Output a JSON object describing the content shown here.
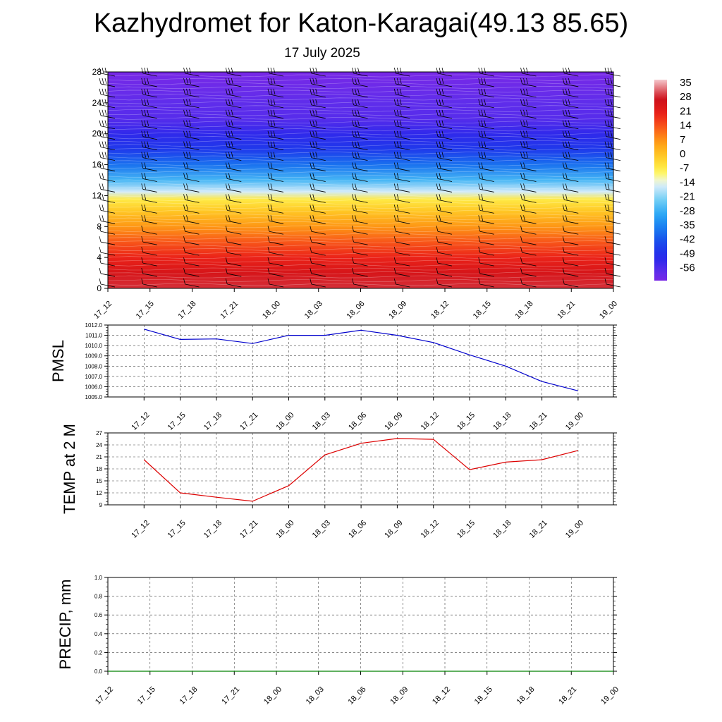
{
  "title": "Kazhydromet for Katon-Karagai(49.13 85.65)",
  "subtitle": "17 July 2025",
  "time_labels": [
    "17_12",
    "17_15",
    "17_18",
    "17_21",
    "18_00",
    "18_03",
    "18_06",
    "18_09",
    "18_12",
    "18_15",
    "18_18",
    "18_21",
    "19_00"
  ],
  "chart_data": [
    {
      "type": "heatmap",
      "name": "cross-section",
      "y_ticks": [
        "0",
        "4",
        "8",
        "12",
        "16",
        "20",
        "24",
        "28"
      ],
      "ylim": [
        0,
        28
      ],
      "colorbar_labels": [
        "35",
        "28",
        "21",
        "14",
        "7",
        "0",
        "-7",
        "-14",
        "-21",
        "-28",
        "-35",
        "-42",
        "-49",
        "-56"
      ],
      "colorbar_range": [
        -60,
        38
      ],
      "level_temps": [
        {
          "y": 0,
          "t": 30
        },
        {
          "y": 2,
          "t": 26
        },
        {
          "y": 4,
          "t": 21
        },
        {
          "y": 6,
          "t": 15
        },
        {
          "y": 8,
          "t": 8
        },
        {
          "y": 10,
          "t": 1
        },
        {
          "y": 11.5,
          "t": -5
        },
        {
          "y": 12.5,
          "t": -14
        },
        {
          "y": 14,
          "t": -25
        },
        {
          "y": 16,
          "t": -36
        },
        {
          "y": 18,
          "t": -45
        },
        {
          "y": 20,
          "t": -50
        },
        {
          "y": 22,
          "t": -55
        },
        {
          "y": 24,
          "t": -56
        },
        {
          "y": 26,
          "t": -58
        },
        {
          "y": 28,
          "t": -60
        }
      ]
    },
    {
      "type": "line",
      "name": "pmsl",
      "ylabel": "PMSL",
      "ylim": [
        1005,
        1012
      ],
      "y_ticks": [
        "1005.0",
        "1006.0",
        "1007.0",
        "1008.0",
        "1009.0",
        "1010.0",
        "1011.0",
        "1012.0"
      ],
      "x": [
        "17_12",
        "17_15",
        "17_18",
        "17_21",
        "18_00",
        "18_03",
        "18_06",
        "18_09",
        "18_12",
        "18_15",
        "18_18",
        "18_21",
        "19_00"
      ],
      "values": [
        1011.6,
        1010.6,
        1010.65,
        1010.2,
        1011.0,
        1011.0,
        1011.5,
        1011.0,
        1010.3,
        1009.1,
        1008.0,
        1006.5,
        1005.6
      ],
      "color": "#0000cc"
    },
    {
      "type": "line",
      "name": "temp",
      "ylabel": "TEMP at 2 M",
      "ylim": [
        9,
        27
      ],
      "y_ticks": [
        "9",
        "12",
        "15",
        "18",
        "21",
        "24",
        "27"
      ],
      "x": [
        "17_12",
        "17_15",
        "17_18",
        "17_21",
        "18_00",
        "18_03",
        "18_06",
        "18_09",
        "18_12",
        "18_15",
        "18_18",
        "18_21",
        "19_00"
      ],
      "values": [
        20.3,
        12.0,
        10.9,
        9.9,
        13.8,
        21.5,
        24.4,
        25.6,
        25.4,
        17.8,
        19.7,
        20.3,
        22.6
      ],
      "color": "#dd0000"
    },
    {
      "type": "line",
      "name": "precip",
      "ylabel": "PRECIP, mm",
      "ylim": [
        0,
        1
      ],
      "y_ticks": [
        "0.0",
        "0.2",
        "0.4",
        "0.6",
        "0.8",
        "1.0"
      ],
      "x": [
        "17_12",
        "17_15",
        "17_18",
        "17_21",
        "18_00",
        "18_03",
        "18_06",
        "18_09",
        "18_12",
        "18_15",
        "18_18",
        "18_21",
        "19_00"
      ],
      "values": [
        0,
        0,
        0,
        0,
        0,
        0,
        0,
        0,
        0,
        0,
        0,
        0,
        0
      ],
      "color": "#008000"
    }
  ]
}
